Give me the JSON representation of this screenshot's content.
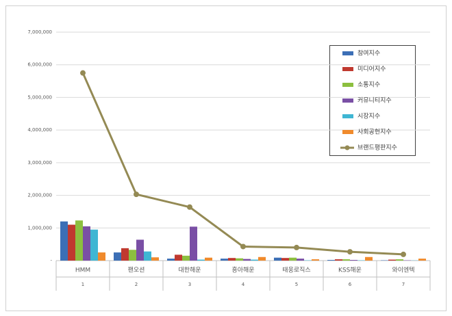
{
  "chart_data": {
    "type": "bar",
    "categories": [
      "HMM",
      "팬오션",
      "대한해운",
      "흥아해운",
      "태웅로직스",
      "KSS해운",
      "와이엔텍"
    ],
    "category_numbers": [
      "1",
      "2",
      "3",
      "4",
      "5",
      "6",
      "7"
    ],
    "series": [
      {
        "name": "참여지수",
        "color": "#3c6fb6",
        "values": [
          1200000,
          250000,
          60000,
          60000,
          90000,
          20000,
          10000
        ]
      },
      {
        "name": "미디어지수",
        "color": "#c0392f",
        "values": [
          1100000,
          380000,
          180000,
          80000,
          80000,
          40000,
          30000
        ]
      },
      {
        "name": "소통지수",
        "color": "#8cbf3f",
        "values": [
          1230000,
          330000,
          150000,
          70000,
          90000,
          40000,
          40000
        ]
      },
      {
        "name": "커뮤니티지수",
        "color": "#7a4fa5",
        "values": [
          1050000,
          640000,
          1040000,
          50000,
          60000,
          20000,
          10000
        ]
      },
      {
        "name": "시장지수",
        "color": "#3fb6d3",
        "values": [
          950000,
          280000,
          30000,
          30000,
          10000,
          10000,
          5000
        ]
      },
      {
        "name": "사회공헌지수",
        "color": "#f08a2c",
        "values": [
          250000,
          100000,
          90000,
          110000,
          40000,
          110000,
          60000
        ]
      },
      {
        "name": "브랜드평판지수",
        "color": "#948a54",
        "type": "line",
        "values": [
          5750000,
          2030000,
          1640000,
          430000,
          400000,
          270000,
          190000
        ]
      }
    ],
    "ylim": [
      0,
      7000000
    ],
    "yticks": [
      {
        "value": 0,
        "label": "-"
      },
      {
        "value": 1000000,
        "label": "1,000,000"
      },
      {
        "value": 2000000,
        "label": "2,000,000"
      },
      {
        "value": 3000000,
        "label": "3,000,000"
      },
      {
        "value": 4000000,
        "label": "4,000,000"
      },
      {
        "value": 5000000,
        "label": "5,000,000"
      },
      {
        "value": 6000000,
        "label": "6,000,000"
      },
      {
        "value": 7000000,
        "label": "7,000,000"
      }
    ],
    "grid": true
  }
}
